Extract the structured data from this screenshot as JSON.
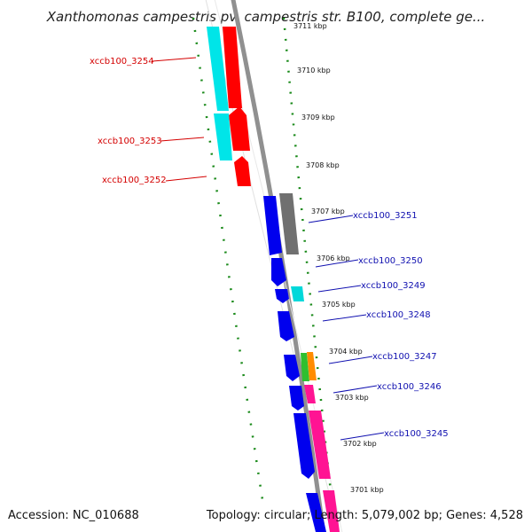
{
  "title": "Xanthomonas campestris pv. campestris str. B100, complete ge...",
  "footer": {
    "accession": "Accession: NC_010688",
    "stats": "Topology: circular; Length: 5,079,002 bp; Genes: 4,528"
  },
  "scale_labels": [
    "3711 kbp",
    "3710 kbp",
    "3709 kbp",
    "3708 kbp",
    "3707 kbp",
    "3706 kbp",
    "3705 kbp",
    "3704 kbp",
    "3703 kbp",
    "3702 kbp",
    "3701 kbp"
  ],
  "gene_tags": [
    {
      "name": "xccb100_3254",
      "side": "left"
    },
    {
      "name": "xccb100_3253",
      "side": "left"
    },
    {
      "name": "xccb100_3252",
      "side": "left"
    },
    {
      "name": "xccb100_3251",
      "side": "right"
    },
    {
      "name": "xccb100_3250",
      "side": "right"
    },
    {
      "name": "xccb100_3249",
      "side": "right"
    },
    {
      "name": "xccb100_3248",
      "side": "right"
    },
    {
      "name": "xccb100_3247",
      "side": "right"
    },
    {
      "name": "xccb100_3246",
      "side": "right"
    },
    {
      "name": "xccb100_3245",
      "side": "right"
    }
  ],
  "colors": {
    "forward_cds": "#ff0000",
    "forward_cds_match": "#00e5e8",
    "reverse_cds": "#0000ee",
    "reverse_match_grey": "#707070",
    "reverse_match_cyan": "#00d8da",
    "reverse_match_green": "#2fbf2f",
    "reverse_match_orange": "#ff8c00",
    "reverse_match_pink": "#ff1493",
    "backbone": "#909090",
    "scale": "#1a8a1a",
    "left_tags": "#d40000",
    "right_tags": "#1010b0"
  }
}
